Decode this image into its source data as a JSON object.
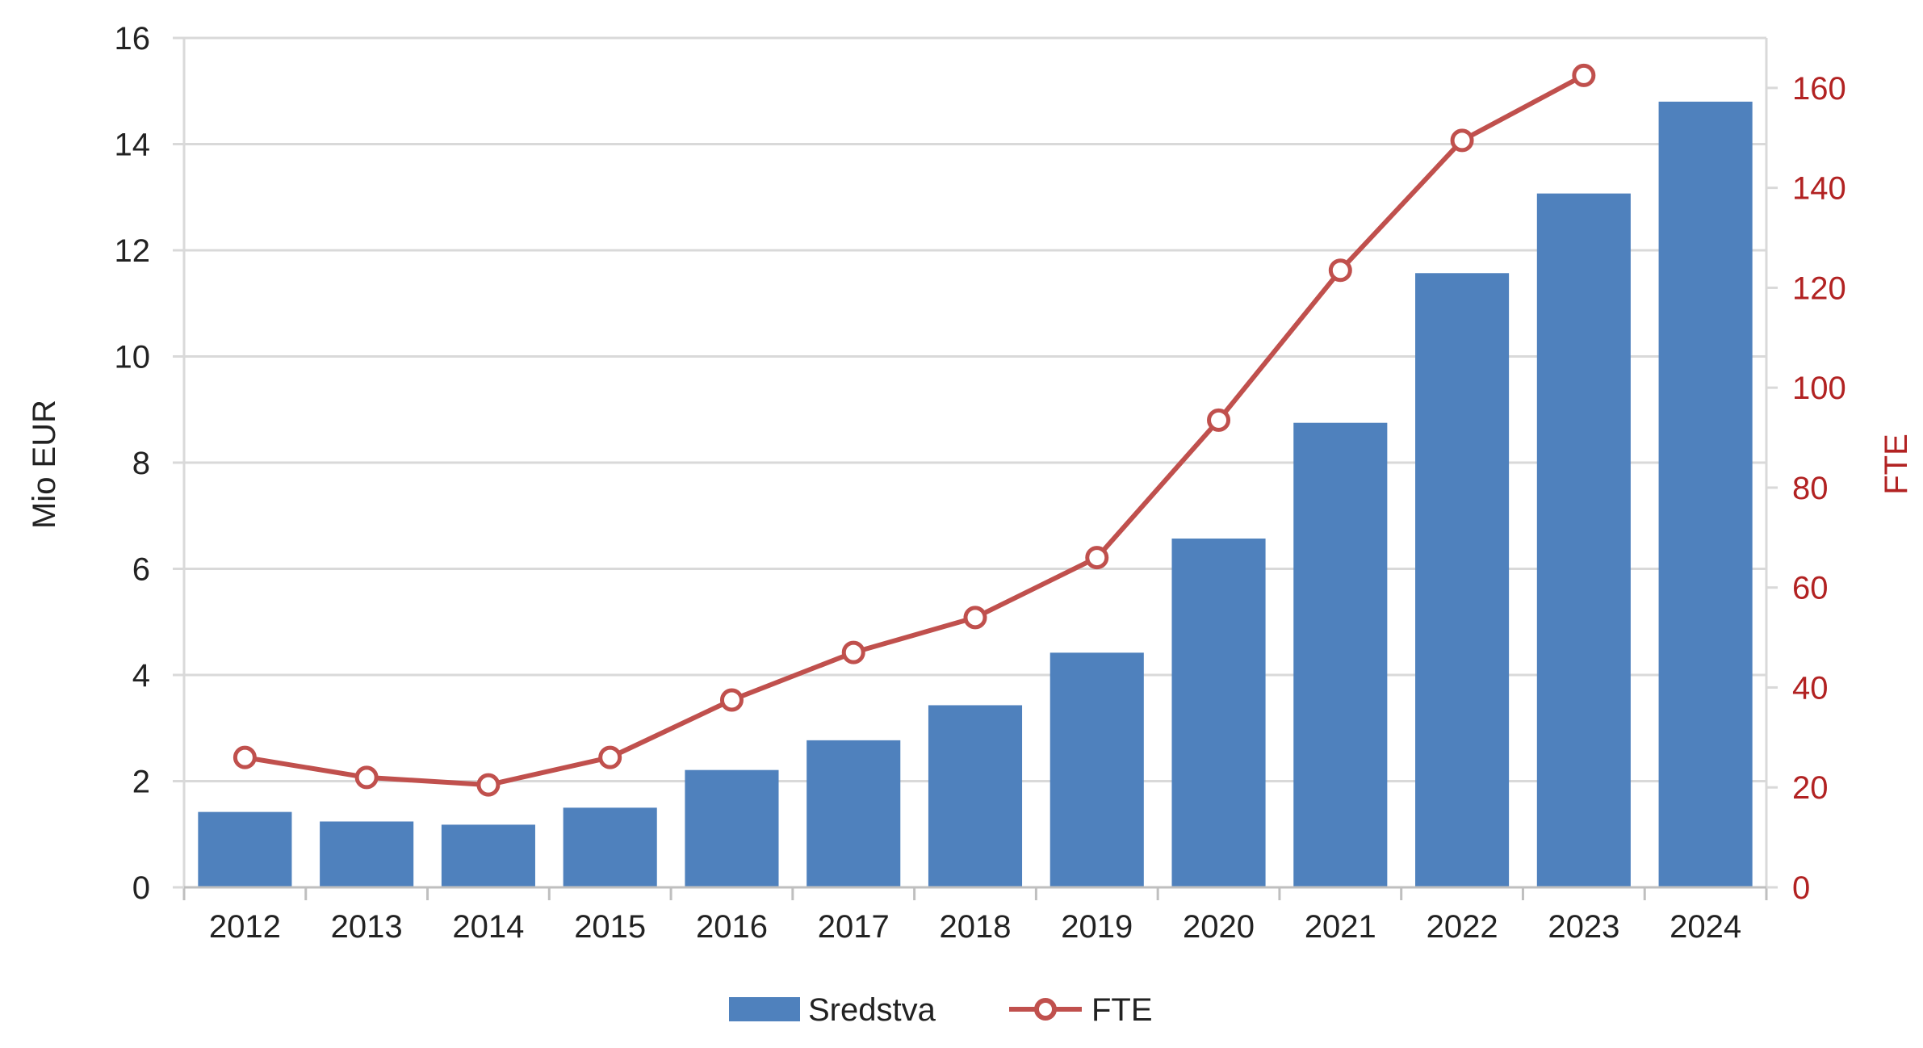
{
  "chart_data": {
    "type": "bar+line",
    "categories": [
      "2012",
      "2013",
      "2014",
      "2015",
      "2016",
      "2017",
      "2018",
      "2019",
      "2020",
      "2021",
      "2022",
      "2023",
      "2024"
    ],
    "series": [
      {
        "name": "Sredstva",
        "type": "bar",
        "axis": "left",
        "color": "#4F81BD",
        "values": [
          1.42,
          1.24,
          1.18,
          1.5,
          2.21,
          2.77,
          3.43,
          4.42,
          6.57,
          8.75,
          11.57,
          13.07,
          14.8
        ]
      },
      {
        "name": "FTE",
        "type": "line",
        "axis": "right",
        "color": "#C0504D",
        "values": [
          26,
          22,
          20.5,
          26,
          37.5,
          47,
          54,
          66,
          93.5,
          123.5,
          149.5,
          162.5,
          null
        ]
      }
    ],
    "y_left": {
      "label": "Mio EUR",
      "min": 0,
      "max": 16,
      "ticks": [
        "0",
        "2",
        "4",
        "6",
        "8",
        "10",
        "12",
        "14",
        "16"
      ],
      "tick_values": [
        0,
        2,
        4,
        6,
        8,
        10,
        12,
        14,
        16
      ]
    },
    "y_right": {
      "label": "FTE",
      "min": 0,
      "max": 170,
      "ticks": [
        "0",
        "20",
        "40",
        "60",
        "80",
        "100",
        "120",
        "140",
        "160"
      ],
      "tick_values": [
        0,
        20,
        40,
        60,
        80,
        100,
        120,
        140,
        160
      ],
      "color": "#B22222"
    },
    "grid": true,
    "legend": {
      "position": "bottom",
      "items": [
        "Sredstva",
        "FTE"
      ]
    }
  }
}
